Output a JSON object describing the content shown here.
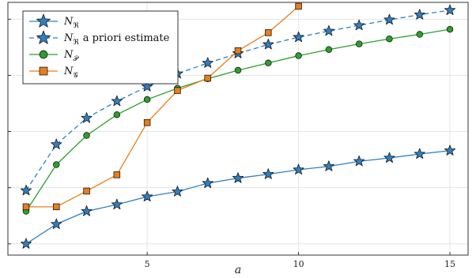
{
  "chart_data": {
    "type": "line",
    "title": "",
    "xlabel": "a",
    "ylabel": "",
    "x_ticks": [
      5,
      10,
      15
    ],
    "xlim": [
      0.4,
      15.6
    ],
    "ylim": [
      0.8,
      5.3
    ],
    "grid": true,
    "legend_position": "top-left",
    "series": [
      {
        "name": "N_ℜ",
        "legend_main": "N",
        "legend_sub": "ℜ",
        "legend_suffix": "",
        "color": "#2f7fc1",
        "marker": "star",
        "dashed": false,
        "x": [
          1,
          2,
          3,
          4,
          5,
          6,
          7,
          8,
          9,
          10,
          11,
          12,
          13,
          14,
          15
        ],
        "y": [
          1.0,
          1.35,
          1.58,
          1.7,
          1.84,
          1.93,
          2.08,
          2.17,
          2.24,
          2.32,
          2.38,
          2.47,
          2.53,
          2.6,
          2.66
        ]
      },
      {
        "name": "N_ℜ a priori estimate",
        "legend_main": "N",
        "legend_sub": "ℜ",
        "legend_suffix": "a priori estimate",
        "color": "#2f7fc1",
        "marker": "star",
        "dashed": true,
        "x": [
          1,
          2,
          3,
          4,
          5,
          6,
          7,
          8,
          9,
          10,
          11,
          12,
          13,
          14,
          15
        ],
        "y": [
          1.95,
          2.77,
          3.24,
          3.54,
          3.8,
          4.03,
          4.22,
          4.39,
          4.55,
          4.68,
          4.79,
          4.89,
          4.99,
          5.08,
          5.16
        ]
      },
      {
        "name": "N_𝒫",
        "legend_main": "N",
        "legend_sub": "𝒫",
        "legend_suffix": "",
        "color": "#2ca02c",
        "marker": "circle",
        "dashed": false,
        "x": [
          1,
          2,
          3,
          4,
          5,
          6,
          7,
          8,
          9,
          10,
          11,
          12,
          13,
          14,
          15
        ],
        "y": [
          1.58,
          2.41,
          2.93,
          3.3,
          3.57,
          3.77,
          3.94,
          4.09,
          4.22,
          4.35,
          4.46,
          4.56,
          4.65,
          4.73,
          4.82
        ]
      },
      {
        "name": "N_𝒢",
        "legend_main": "N",
        "legend_sub": "𝒢",
        "legend_suffix": "",
        "color": "#e87e1b",
        "marker": "square",
        "dashed": false,
        "x": [
          1,
          2,
          3,
          4,
          5,
          6,
          7,
          8,
          9,
          10
        ],
        "y": [
          1.66,
          1.66,
          1.94,
          2.23,
          3.16,
          3.73,
          3.95,
          4.44,
          4.76,
          5.23
        ]
      }
    ]
  }
}
